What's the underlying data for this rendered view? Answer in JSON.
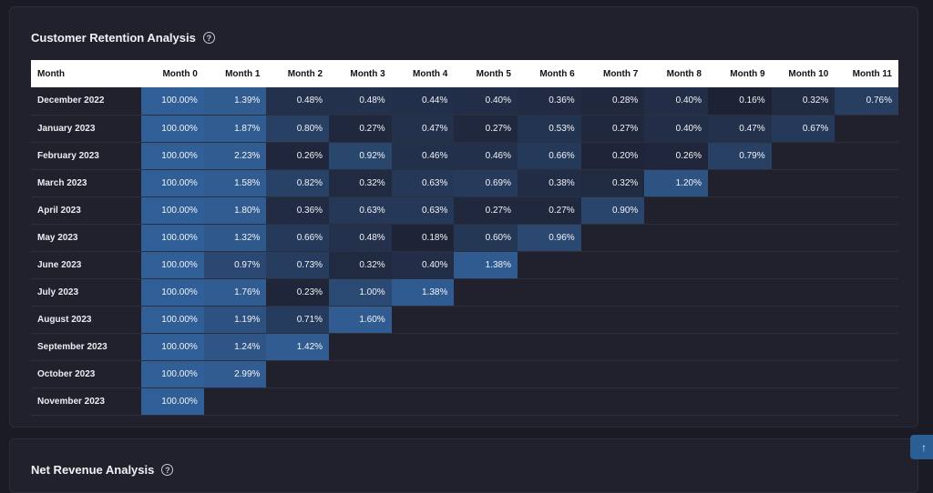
{
  "retention": {
    "title": "Customer Retention Analysis",
    "help_icon": "?",
    "columns": [
      "Month",
      "Month 0",
      "Month 1",
      "Month 2",
      "Month 3",
      "Month 4",
      "Month 5",
      "Month 6",
      "Month 7",
      "Month 8",
      "Month 9",
      "Month 10",
      "Month 11"
    ],
    "rows": [
      {
        "label": "December 2022",
        "values": [
          100.0,
          1.39,
          0.48,
          0.48,
          0.44,
          0.4,
          0.36,
          0.28,
          0.4,
          0.16,
          0.32,
          0.76
        ]
      },
      {
        "label": "January 2023",
        "values": [
          100.0,
          1.87,
          0.8,
          0.27,
          0.47,
          0.27,
          0.53,
          0.27,
          0.4,
          0.47,
          0.67
        ]
      },
      {
        "label": "February 2023",
        "values": [
          100.0,
          2.23,
          0.26,
          0.92,
          0.46,
          0.46,
          0.66,
          0.2,
          0.26,
          0.79
        ]
      },
      {
        "label": "March 2023",
        "values": [
          100.0,
          1.58,
          0.82,
          0.32,
          0.63,
          0.69,
          0.38,
          0.32,
          1.2
        ]
      },
      {
        "label": "April 2023",
        "values": [
          100.0,
          1.8,
          0.36,
          0.63,
          0.63,
          0.27,
          0.27,
          0.9
        ]
      },
      {
        "label": "May 2023",
        "values": [
          100.0,
          1.32,
          0.66,
          0.48,
          0.18,
          0.6,
          0.96
        ]
      },
      {
        "label": "June 2023",
        "values": [
          100.0,
          0.97,
          0.73,
          0.32,
          0.4,
          1.38
        ]
      },
      {
        "label": "July 2023",
        "values": [
          100.0,
          1.76,
          0.23,
          1.0,
          1.38
        ]
      },
      {
        "label": "August 2023",
        "values": [
          100.0,
          1.19,
          0.71,
          1.6
        ]
      },
      {
        "label": "September 2023",
        "values": [
          100.0,
          1.24,
          1.42
        ]
      },
      {
        "label": "October 2023",
        "values": [
          100.0,
          2.99
        ]
      },
      {
        "label": "November 2023",
        "values": [
          100.0
        ]
      }
    ],
    "unit_suffix": "%"
  },
  "net_revenue": {
    "title": "Net Revenue Analysis",
    "help_icon": "?"
  },
  "scroll_top": {
    "icon": "arrow-up-icon",
    "glyph": "↑"
  },
  "colors": {
    "page_bg": "#1b1b26",
    "card_bg": "#20212d",
    "accent": "#2a5f96"
  }
}
